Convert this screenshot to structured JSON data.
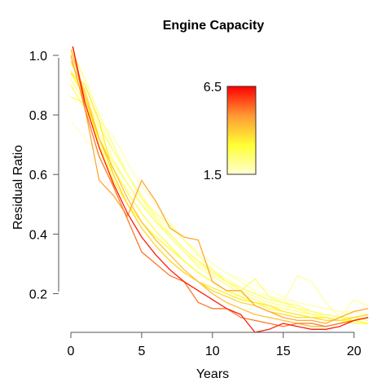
{
  "chart_data": {
    "type": "line",
    "title": "Engine Capacity",
    "xlabel": "Years",
    "ylabel": "Residual Ratio",
    "xlim": [
      0,
      21
    ],
    "ylim": [
      0.07,
      1.03
    ],
    "x_ticks": [
      "0",
      "5",
      "10",
      "15",
      "20"
    ],
    "y_ticks": [
      "0.2",
      "0.4",
      "0.6",
      "0.8",
      "1.0"
    ],
    "grid": false,
    "legend": {
      "type": "colorbar",
      "placement": "top-right",
      "min_label": "1.5",
      "max_label": "6.5",
      "min": 1.5,
      "max": 6.5,
      "colors": [
        "#ffffd4",
        "#ffff33",
        "#ff9933",
        "#ff0000"
      ]
    },
    "series_note": "",
    "series": [
      {
        "capacity": 1.6,
        "x": [
          0,
          1,
          2,
          3,
          4,
          5,
          6,
          7,
          8,
          9,
          10,
          11,
          12,
          13,
          14,
          15,
          16,
          17,
          18,
          19,
          20,
          21
        ],
        "values": [
          0.78,
          0.72,
          0.67,
          0.61,
          0.55,
          0.5,
          0.46,
          0.42,
          0.38,
          0.34,
          0.3,
          0.27,
          0.25,
          0.23,
          0.21,
          0.19,
          0.17,
          0.16,
          0.15,
          0.14,
          0.13,
          0.12
        ]
      },
      {
        "capacity": 1.8,
        "x": [
          0,
          1,
          2,
          3,
          4,
          5,
          6,
          7,
          8,
          9,
          10,
          11,
          12,
          13,
          14,
          15,
          16,
          17,
          18,
          19,
          20,
          21
        ],
        "values": [
          1.0,
          0.87,
          0.78,
          0.73,
          0.64,
          0.56,
          0.5,
          0.44,
          0.38,
          0.34,
          0.3,
          0.27,
          0.24,
          0.21,
          0.19,
          0.18,
          0.17,
          0.16,
          0.15,
          0.14,
          0.14,
          0.13
        ]
      },
      {
        "capacity": 2.0,
        "x": [
          0,
          1,
          2,
          3,
          4,
          5,
          6,
          7,
          8,
          9,
          10,
          11,
          12,
          13,
          14,
          15,
          16,
          17,
          18,
          19,
          20,
          21
        ],
        "values": [
          0.97,
          0.9,
          0.78,
          0.68,
          0.6,
          0.53,
          0.46,
          0.4,
          0.35,
          0.31,
          0.28,
          0.25,
          0.22,
          0.2,
          0.18,
          0.17,
          0.26,
          0.24,
          0.17,
          0.12,
          0.18,
          0.16
        ]
      },
      {
        "capacity": 2.2,
        "x": [
          0,
          1,
          2,
          3,
          4,
          5,
          6,
          7,
          8,
          9,
          10,
          11,
          12,
          13,
          14,
          15,
          16,
          17,
          18,
          19,
          20,
          21
        ],
        "values": [
          0.92,
          0.84,
          0.74,
          0.65,
          0.57,
          0.5,
          0.44,
          0.39,
          0.34,
          0.3,
          0.27,
          0.24,
          0.21,
          0.19,
          0.17,
          0.16,
          0.15,
          0.14,
          0.13,
          0.12,
          0.12,
          0.11
        ]
      },
      {
        "capacity": 2.4,
        "x": [
          0,
          1,
          2,
          3,
          4,
          5,
          6,
          7,
          8,
          9,
          10,
          11,
          12,
          13,
          14,
          15,
          16,
          17,
          18,
          19,
          20,
          21
        ],
        "values": [
          1.02,
          0.92,
          0.8,
          0.7,
          0.6,
          0.52,
          0.45,
          0.39,
          0.34,
          0.29,
          0.26,
          0.23,
          0.2,
          0.18,
          0.16,
          0.15,
          0.14,
          0.13,
          0.12,
          0.11,
          0.11,
          0.1
        ]
      },
      {
        "capacity": 2.5,
        "x": [
          0,
          1,
          2,
          3,
          4,
          5,
          6,
          7,
          8,
          9,
          10,
          11,
          12,
          13,
          14,
          15,
          16,
          17,
          18,
          19,
          20,
          21
        ],
        "values": [
          0.95,
          0.86,
          0.76,
          0.68,
          0.6,
          0.52,
          0.47,
          0.43,
          0.38,
          0.33,
          0.28,
          0.24,
          0.21,
          0.25,
          0.19,
          0.17,
          0.15,
          0.13,
          0.13,
          0.12,
          0.11,
          0.1
        ]
      },
      {
        "capacity": 2.7,
        "x": [
          0,
          1,
          2,
          3,
          4,
          5,
          6,
          7,
          8,
          9,
          10,
          11,
          12,
          13,
          14,
          15,
          16,
          17,
          18,
          19,
          20,
          21
        ],
        "values": [
          0.9,
          0.82,
          0.72,
          0.64,
          0.57,
          0.5,
          0.44,
          0.4,
          0.35,
          0.31,
          0.27,
          0.24,
          0.22,
          0.2,
          0.18,
          0.17,
          0.16,
          0.14,
          0.13,
          0.12,
          0.12,
          0.11
        ]
      },
      {
        "capacity": 3.0,
        "x": [
          0,
          1,
          2,
          3,
          4,
          5,
          6,
          7,
          8,
          9,
          10,
          11,
          12,
          13,
          14,
          15,
          16,
          17,
          18,
          19,
          20,
          21
        ],
        "values": [
          0.86,
          0.84,
          0.72,
          0.62,
          0.54,
          0.47,
          0.41,
          0.36,
          0.31,
          0.27,
          0.24,
          0.21,
          0.19,
          0.17,
          0.16,
          0.14,
          0.13,
          0.12,
          0.11,
          0.11,
          0.1,
          0.1
        ]
      },
      {
        "capacity": 3.2,
        "x": [
          0,
          1,
          2,
          3,
          4,
          5,
          6,
          7,
          8,
          9,
          10,
          11,
          12,
          13,
          14,
          15,
          16,
          17,
          18,
          19,
          20,
          21
        ],
        "values": [
          0.94,
          0.86,
          0.7,
          0.58,
          0.5,
          0.44,
          0.39,
          0.35,
          0.31,
          0.27,
          0.24,
          0.21,
          0.19,
          0.17,
          0.15,
          0.14,
          0.13,
          0.12,
          0.12,
          0.11,
          0.11,
          0.1
        ]
      },
      {
        "capacity": 3.5,
        "x": [
          0,
          1,
          2,
          3,
          4,
          5,
          6,
          7,
          8,
          9,
          10,
          11,
          12,
          13,
          14,
          15,
          16,
          17,
          18,
          19,
          20,
          21
        ],
        "values": [
          0.94,
          0.9,
          0.78,
          0.6,
          0.5,
          0.42,
          0.36,
          0.31,
          0.27,
          0.24,
          0.22,
          0.2,
          0.18,
          0.17,
          0.16,
          0.14,
          0.13,
          0.12,
          0.12,
          0.11,
          0.12,
          0.13
        ]
      },
      {
        "capacity": 3.8,
        "x": [
          0,
          1,
          2,
          3,
          4,
          5,
          6,
          7,
          8,
          9,
          10,
          11,
          12,
          13,
          14,
          15,
          16,
          17,
          18,
          19,
          20,
          21
        ],
        "values": [
          0.98,
          0.88,
          0.72,
          0.6,
          0.5,
          0.42,
          0.36,
          0.31,
          0.27,
          0.24,
          0.21,
          0.19,
          0.17,
          0.16,
          0.14,
          0.13,
          0.12,
          0.12,
          0.11,
          0.11,
          0.12,
          0.13
        ]
      },
      {
        "capacity": 4.2,
        "x": [
          0,
          1,
          2,
          3,
          4,
          5,
          6,
          7,
          8,
          9,
          10,
          11,
          12,
          13,
          14,
          15,
          16,
          17,
          18,
          19,
          20,
          21
        ],
        "values": [
          1.02,
          0.86,
          0.72,
          0.62,
          0.52,
          0.44,
          0.38,
          0.33,
          0.28,
          0.24,
          0.2,
          0.17,
          0.15,
          0.13,
          0.12,
          0.11,
          0.1,
          0.09,
          0.09,
          0.1,
          0.11,
          0.12
        ]
      },
      {
        "capacity": 4.6,
        "x": [
          0,
          1,
          2,
          3,
          4,
          5,
          6,
          7,
          8,
          9,
          10,
          11,
          12,
          13,
          14,
          15,
          16,
          17,
          18,
          19,
          20,
          21
        ],
        "values": [
          1.0,
          0.82,
          0.58,
          0.53,
          0.46,
          0.58,
          0.51,
          0.42,
          0.39,
          0.38,
          0.24,
          0.21,
          0.21,
          0.16,
          0.14,
          0.12,
          0.11,
          0.11,
          0.1,
          0.12,
          0.14,
          0.15
        ]
      },
      {
        "capacity": 5.2,
        "x": [
          0,
          1,
          2,
          3,
          4,
          5,
          6,
          7,
          8,
          9,
          10,
          11,
          12,
          13,
          14,
          15,
          16,
          17,
          18,
          19,
          20,
          21
        ],
        "values": [
          1.06,
          0.82,
          0.66,
          0.56,
          0.45,
          0.34,
          0.3,
          0.26,
          0.24,
          0.17,
          0.15,
          0.15,
          0.12,
          0.11,
          0.1,
          0.09,
          0.1,
          0.1,
          0.09,
          0.1,
          0.11,
          0.12
        ]
      },
      {
        "capacity": 6.2,
        "x": [
          0,
          1,
          2,
          3,
          4,
          5,
          6,
          7,
          8,
          9,
          10,
          11,
          12,
          13,
          14,
          15,
          16,
          17,
          18,
          19,
          20,
          21
        ],
        "values": [
          1.06,
          0.84,
          0.69,
          0.57,
          0.47,
          0.39,
          0.33,
          0.28,
          0.24,
          0.21,
          0.18,
          0.15,
          0.13,
          0.07,
          0.08,
          0.1,
          0.09,
          0.08,
          0.08,
          0.09,
          0.11,
          0.12
        ]
      }
    ]
  }
}
